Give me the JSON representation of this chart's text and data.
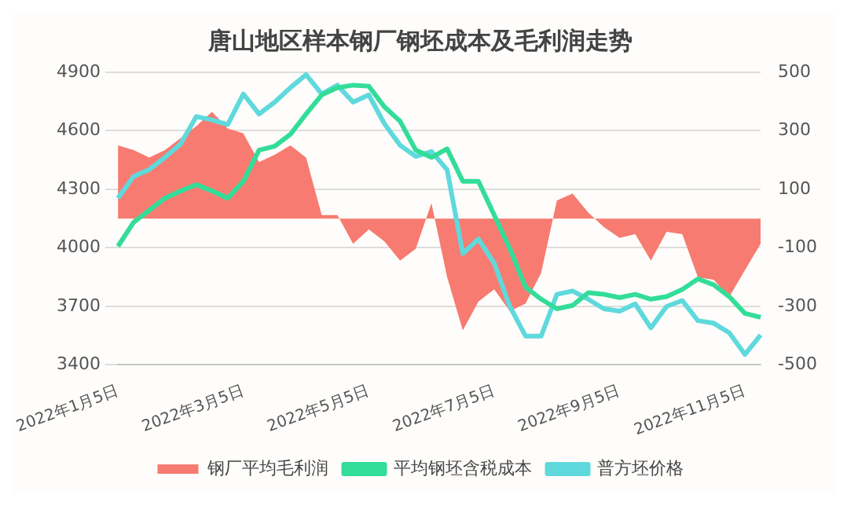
{
  "chart_data": {
    "type": "line",
    "title": "唐山地区样本钢厂钢坯成本及毛利润走势",
    "categories": [
      "2022年1月5日",
      null,
      null,
      null,
      null,
      null,
      null,
      null,
      "2022年3月5日",
      null,
      null,
      null,
      null,
      null,
      null,
      null,
      "2022年5月5日",
      null,
      null,
      null,
      null,
      null,
      null,
      null,
      "2022年7月5日",
      null,
      null,
      null,
      null,
      null,
      null,
      null,
      "2022年9月5日",
      null,
      null,
      null,
      null,
      null,
      null,
      null,
      "2022年11月5日",
      null
    ],
    "series": [
      {
        "name": "钢厂平均毛利润",
        "type": "area",
        "axis": "y2",
        "color": "#f77b70",
        "values": [
          250,
          234,
          209,
          234,
          275,
          316,
          365,
          308,
          291,
          193,
          218,
          250,
          209,
          12,
          12,
          -86,
          -37,
          -78,
          -144,
          -103,
          53,
          -200,
          -382,
          -283,
          -242,
          -316,
          -291,
          -185,
          62,
          86,
          21,
          -29,
          -66,
          -53,
          -144,
          -45,
          -53,
          -201,
          -209,
          -267,
          -176,
          -86
        ]
      },
      {
        "name": "平均钢坯含税成本",
        "type": "line",
        "color": "#33dd99",
        "values": [
          4008,
          4131,
          4193,
          4255,
          4292,
          4324,
          4292,
          4255,
          4341,
          4501,
          4521,
          4582,
          4686,
          4784,
          4821,
          4834,
          4829,
          4723,
          4649,
          4501,
          4464,
          4508,
          4341,
          4341,
          4169,
          3996,
          3799,
          3737,
          3688,
          3705,
          3770,
          3762,
          3745,
          3762,
          3737,
          3750,
          3787,
          3841,
          3811,
          3750,
          3664,
          3644
        ]
      },
      {
        "name": "普方坯价格",
        "type": "line",
        "color": "#5fd9dc",
        "values": [
          4255,
          4366,
          4402,
          4464,
          4533,
          4673,
          4656,
          4632,
          4789,
          4686,
          4747,
          4821,
          4888,
          4789,
          4834,
          4747,
          4784,
          4636,
          4526,
          4469,
          4494,
          4400,
          3971,
          4045,
          3922,
          3700,
          3548,
          3548,
          3762,
          3779,
          3737,
          3688,
          3676,
          3713,
          3590,
          3700,
          3730,
          3627,
          3614,
          3565,
          3454,
          3553
        ]
      }
    ],
    "ylim": [
      3400,
      4900
    ],
    "yticks": [
      3400,
      3700,
      4000,
      4300,
      4600,
      4900
    ],
    "y2lim": [
      -500,
      500
    ],
    "y2ticks": [
      -500,
      -300,
      -100,
      100,
      300,
      500
    ],
    "grid": "y",
    "legend": "bottom",
    "marker": "none",
    "line_style": "solid"
  }
}
